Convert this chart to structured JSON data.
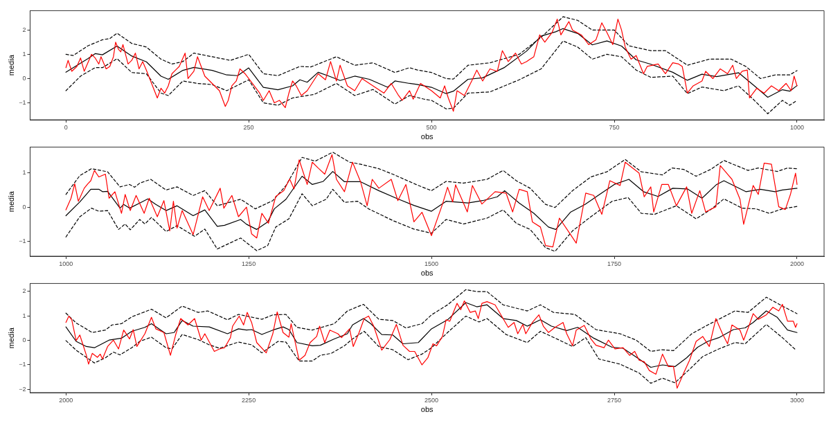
{
  "chart_data": [
    {
      "type": "line",
      "xlabel": "obs",
      "ylabel": "media",
      "marker": "none",
      "xlim": [
        -49,
        1037
      ],
      "xticks": [
        0,
        250,
        500,
        750,
        1000
      ],
      "ylim": [
        -1.7,
        2.8
      ],
      "yticks": [
        -1,
        0,
        1,
        2
      ],
      "series": [
        {
          "color": "#ff0000",
          "x": [
            0,
            3,
            8,
            15,
            20,
            25,
            35,
            40,
            45,
            48,
            55,
            60,
            65,
            68,
            72,
            75,
            78,
            85,
            90,
            95,
            100,
            105,
            110,
            125,
            130,
            135,
            140,
            145,
            155,
            163,
            167,
            175,
            180,
            185,
            190,
            200,
            210,
            218,
            222,
            227,
            233,
            238,
            245,
            255,
            265,
            270,
            278,
            285,
            292,
            300,
            305,
            310,
            315,
            322,
            330,
            345,
            355,
            362,
            370,
            375,
            385,
            395,
            405,
            415,
            425,
            435,
            445,
            455,
            460,
            470,
            475,
            485,
            495,
            500,
            512,
            518,
            523,
            530,
            535,
            545,
            555,
            562,
            570,
            580,
            590,
            597,
            605,
            615,
            623,
            630,
            640,
            648,
            655,
            665,
            672,
            677,
            688,
            693,
            705,
            715,
            725,
            733,
            740,
            748,
            755,
            760,
            765,
            773,
            780,
            790,
            795,
            810,
            820,
            830,
            838,
            843,
            850,
            858,
            870,
            875,
            885,
            895,
            905,
            912,
            917,
            925,
            932,
            935,
            945,
            955,
            965,
            975,
            985,
            992,
            996,
            1000
          ],
          "values": [
            0.45,
            0.75,
            0.3,
            0.5,
            0.85,
            0.3,
            1.0,
            0.85,
            0.6,
            0.9,
            0.4,
            0.5,
            0.9,
            1.5,
            1.2,
            1.1,
            1.4,
            0.6,
            0.75,
            1.05,
            0.4,
            0.7,
            0.35,
            -0.8,
            -0.4,
            -0.6,
            -0.3,
            0.2,
            0.5,
            1.05,
            0.0,
            0.3,
            0.9,
            0.5,
            0.1,
            -0.2,
            -0.5,
            -1.15,
            -0.9,
            -0.3,
            -0.1,
            0.4,
            0.2,
            -0.2,
            -0.6,
            -0.9,
            -0.5,
            -1.0,
            -0.9,
            -1.2,
            -0.6,
            -0.1,
            -0.3,
            -0.7,
            -0.5,
            0.2,
            -0.05,
            0.7,
            -0.1,
            0.55,
            -0.3,
            -0.5,
            0.0,
            -0.2,
            -0.4,
            -0.6,
            -0.2,
            -0.7,
            -0.9,
            -0.5,
            -0.85,
            -0.2,
            -0.4,
            -0.5,
            -0.8,
            -0.3,
            -0.8,
            -1.35,
            -0.5,
            -0.7,
            -0.1,
            0.35,
            -0.1,
            0.4,
            0.3,
            1.15,
            0.7,
            1.05,
            0.6,
            0.7,
            0.9,
            1.8,
            1.5,
            1.9,
            2.45,
            1.8,
            2.35,
            2.0,
            1.8,
            1.4,
            1.6,
            2.3,
            1.9,
            1.4,
            2.45,
            2.0,
            1.3,
            0.8,
            0.95,
            0.2,
            0.5,
            0.6,
            0.2,
            0.65,
            0.6,
            0.5,
            -0.6,
            -0.3,
            -0.1,
            0.3,
            0.0,
            0.4,
            0.2,
            0.55,
            0.0,
            0.3,
            0.35,
            -0.8,
            -0.4,
            -0.6,
            -0.3,
            -0.5,
            -0.2,
            -0.5,
            0.1,
            -0.3
          ]
        },
        {
          "color": "#000000",
          "x": [
            0,
            30,
            40,
            50,
            70,
            90,
            110,
            130,
            140,
            160,
            175,
            200,
            220,
            235,
            250,
            270,
            290,
            310,
            320,
            330,
            345,
            360,
            375,
            395,
            415,
            440,
            450,
            470,
            480,
            500,
            520,
            530,
            550,
            570,
            600,
            630,
            650,
            670,
            680,
            700,
            720,
            740,
            760,
            780,
            800,
            830,
            850,
            870,
            890,
            920,
            940,
            960,
            980,
            990,
            1000
          ],
          "values": [
            0.26,
            0.82,
            1.03,
            0.98,
            1.34,
            0.93,
            0.69,
            0.1,
            -0.03,
            0.34,
            0.46,
            0.34,
            0.15,
            0.12,
            0.44,
            -0.36,
            -0.46,
            -0.3,
            -0.05,
            -0.15,
            0.26,
            0.1,
            -0.08,
            0.1,
            -0.03,
            -0.36,
            -0.1,
            -0.2,
            -0.24,
            -0.36,
            -0.62,
            -0.52,
            -0.03,
            0.03,
            0.46,
            1.13,
            1.75,
            1.93,
            2.06,
            1.86,
            1.39,
            1.55,
            1.34,
            0.77,
            0.59,
            0.26,
            -0.07,
            0.18,
            0.08,
            0.24,
            -0.26,
            -0.77,
            -0.46,
            -0.52,
            -0.29
          ]
        },
        {
          "color": "#000000",
          "line_style": "dashed",
          "x": [
            0,
            10,
            30,
            50,
            60,
            70,
            90,
            110,
            130,
            145,
            160,
            175,
            200,
            225,
            250,
            270,
            290,
            320,
            335,
            370,
            395,
            420,
            450,
            470,
            480,
            500,
            520,
            530,
            550,
            580,
            620,
            650,
            680,
            700,
            720,
            750,
            770,
            800,
            820,
            850,
            880,
            910,
            930,
            950,
            970,
            990,
            1000
          ],
          "values": [
            1.0,
            0.95,
            1.35,
            1.6,
            1.65,
            1.87,
            1.45,
            1.3,
            0.8,
            0.6,
            0.7,
            1.05,
            0.9,
            0.75,
            1.0,
            0.2,
            0.12,
            0.5,
            0.48,
            0.9,
            0.55,
            0.65,
            0.25,
            0.45,
            0.36,
            0.25,
            0.0,
            -0.02,
            0.55,
            0.65,
            1.0,
            1.7,
            2.55,
            2.4,
            2.0,
            2.0,
            1.35,
            1.15,
            1.15,
            0.55,
            0.8,
            0.8,
            0.5,
            0.0,
            0.15,
            0.15,
            0.33
          ]
        },
        {
          "color": "#000000",
          "line_style": "dashed",
          "x": [
            0,
            20,
            40,
            50,
            70,
            90,
            110,
            130,
            140,
            160,
            180,
            200,
            220,
            250,
            270,
            290,
            310,
            340,
            370,
            395,
            420,
            450,
            470,
            490,
            500,
            520,
            530,
            550,
            580,
            620,
            650,
            680,
            700,
            720,
            740,
            760,
            780,
            800,
            830,
            850,
            870,
            900,
            920,
            940,
            960,
            980,
            990,
            1000
          ],
          "values": [
            -0.5,
            0.1,
            0.45,
            0.45,
            0.82,
            0.25,
            0.2,
            -0.6,
            -0.7,
            -0.1,
            -0.2,
            -0.25,
            -0.5,
            -0.05,
            -1.0,
            -1.1,
            -0.8,
            -0.65,
            -0.2,
            -0.7,
            -0.45,
            -1.05,
            -0.7,
            -0.85,
            -0.9,
            -1.25,
            -1.22,
            -0.6,
            -0.55,
            -0.05,
            0.4,
            1.55,
            1.3,
            0.8,
            1.0,
            0.9,
            0.35,
            0.05,
            0.1,
            -0.62,
            -0.35,
            -0.5,
            -0.3,
            -0.85,
            -1.45,
            -0.9,
            -1.1,
            -0.9
          ]
        }
      ]
    },
    {
      "type": "line",
      "xlabel": "obs",
      "ylabel": "media",
      "marker": "none",
      "xlim": [
        951,
        2037
      ],
      "xticks": [
        1000,
        1250,
        1500,
        1750,
        2000
      ],
      "ylim": [
        -1.43,
        1.75
      ],
      "yticks": [
        -1,
        0,
        1
      ],
      "series": [
        {
          "color": "#ff0000",
          "x": [
            1000,
            1007,
            1012,
            1017,
            1025,
            1030,
            1034,
            1039,
            1045,
            1054,
            1059,
            1067,
            1076,
            1081,
            1088,
            1096,
            1107,
            1114,
            1125,
            1134,
            1142,
            1147,
            1152,
            1159,
            1174,
            1187,
            1196,
            1211,
            1216,
            1227,
            1236,
            1247,
            1254,
            1261,
            1268,
            1277,
            1287,
            1298,
            1306,
            1312,
            1319,
            1330,
            1337,
            1345,
            1354,
            1364,
            1370,
            1381,
            1392,
            1403,
            1412,
            1419,
            1428,
            1445,
            1454,
            1465,
            1476,
            1487,
            1500,
            1515,
            1522,
            1529,
            1533,
            1549,
            1556,
            1569,
            1587,
            1602,
            1611,
            1620,
            1631,
            1638,
            1649,
            1656,
            1666,
            1675,
            1689,
            1698,
            1711,
            1722,
            1733,
            1744,
            1758,
            1765,
            1771,
            1784,
            1791,
            1800,
            1804,
            1815,
            1824,
            1835,
            1849,
            1856,
            1867,
            1875,
            1889,
            1895,
            1911,
            1922,
            1927,
            1940,
            1947,
            1955,
            1965,
            1975,
            1984,
            1991,
            1998,
            2000
          ],
          "values": [
            -0.08,
            0.26,
            0.68,
            0.17,
            0.55,
            0.68,
            0.77,
            1.07,
            0.88,
            0.96,
            0.26,
            0.45,
            -0.18,
            0.37,
            -0.1,
            0.34,
            -0.18,
            0.26,
            -0.28,
            0.19,
            -0.69,
            0.17,
            -0.61,
            -0.1,
            -0.8,
            0.3,
            -0.1,
            0.55,
            -0.03,
            0.34,
            -0.28,
            0.0,
            -0.78,
            -0.9,
            -0.18,
            -0.47,
            0.31,
            0.48,
            0.82,
            0.53,
            1.38,
            0.66,
            1.31,
            1.14,
            0.96,
            1.53,
            0.81,
            0.45,
            1.31,
            0.74,
            0.04,
            0.81,
            0.55,
            0.81,
            0.19,
            0.66,
            -0.43,
            -0.15,
            -0.83,
            0.08,
            0.58,
            0.15,
            0.65,
            -0.14,
            0.63,
            0.09,
            0.45,
            0.41,
            -0.14,
            0.52,
            0.45,
            -0.43,
            -0.58,
            -1.12,
            -1.16,
            -0.32,
            -0.76,
            -1.05,
            0.41,
            0.34,
            -0.21,
            0.77,
            0.63,
            1.31,
            1.21,
            0.99,
            0.3,
            0.59,
            -0.14,
            0.66,
            0.66,
            0.04,
            0.59,
            -0.18,
            0.48,
            -0.14,
            0.01,
            1.21,
            0.81,
            0.23,
            -0.5,
            0.63,
            0.37,
            1.28,
            1.25,
            0.01,
            -0.07,
            0.37,
            0.99,
            0.66
          ]
        },
        {
          "color": "#000000",
          "x": [
            1000,
            1019,
            1034,
            1045,
            1050,
            1057,
            1074,
            1079,
            1087,
            1101,
            1112,
            1123,
            1137,
            1152,
            1174,
            1190,
            1207,
            1217,
            1239,
            1247,
            1261,
            1276,
            1285,
            1301,
            1323,
            1337,
            1352,
            1365,
            1381,
            1403,
            1428,
            1454,
            1476,
            1500,
            1520,
            1550,
            1570,
            1590,
            1600,
            1620,
            1640,
            1660,
            1670,
            1690,
            1710,
            1730,
            1750,
            1770,
            1790,
            1810,
            1830,
            1850,
            1870,
            1890,
            1900,
            1930,
            1950,
            1970,
            1980,
            2000
          ],
          "values": [
            -0.25,
            0.15,
            0.52,
            0.52,
            0.45,
            0.46,
            -0.03,
            0.08,
            -0.03,
            0.12,
            0.24,
            0.08,
            -0.1,
            0.04,
            -0.25,
            -0.08,
            -0.56,
            -0.53,
            -0.36,
            -0.5,
            -0.65,
            -0.43,
            -0.05,
            0.23,
            0.9,
            0.66,
            0.75,
            1.04,
            0.74,
            0.74,
            0.48,
            0.24,
            0.05,
            -0.12,
            0.17,
            0.12,
            0.19,
            0.3,
            0.48,
            0.12,
            -0.18,
            -0.58,
            -0.65,
            -0.15,
            0.08,
            0.37,
            0.66,
            0.81,
            0.45,
            0.31,
            0.55,
            0.53,
            0.26,
            0.66,
            0.77,
            0.45,
            0.52,
            0.45,
            0.5,
            0.55
          ]
        },
        {
          "color": "#000000",
          "line_style": "dashed",
          "x": [
            1000,
            1019,
            1035,
            1057,
            1074,
            1087,
            1094,
            1101,
            1116,
            1137,
            1152,
            1174,
            1190,
            1207,
            1239,
            1259,
            1283,
            1301,
            1323,
            1341,
            1365,
            1388,
            1403,
            1428,
            1447,
            1480,
            1500,
            1520,
            1544,
            1576,
            1598,
            1616,
            1635,
            1656,
            1669,
            1693,
            1718,
            1740,
            1765,
            1787,
            1816,
            1829,
            1845,
            1862,
            1882,
            1900,
            1933,
            1947,
            1973,
            1987,
            2000
          ],
          "values": [
            0.37,
            0.92,
            1.12,
            1.03,
            0.59,
            0.66,
            0.58,
            0.7,
            0.81,
            0.5,
            0.59,
            0.34,
            0.48,
            0.04,
            0.23,
            -0.05,
            0.19,
            0.63,
            1.45,
            1.34,
            1.6,
            1.31,
            1.25,
            1.12,
            0.96,
            0.65,
            0.48,
            0.75,
            0.7,
            0.81,
            1.07,
            0.77,
            0.55,
            0.08,
            -0.01,
            0.48,
            0.88,
            1.03,
            1.39,
            1.03,
            0.94,
            1.14,
            1.1,
            0.9,
            1.1,
            1.36,
            1.07,
            1.14,
            1.04,
            1.14,
            1.12
          ]
        },
        {
          "color": "#000000",
          "line_style": "dashed",
          "x": [
            1000,
            1019,
            1035,
            1045,
            1057,
            1072,
            1081,
            1088,
            1101,
            1108,
            1117,
            1137,
            1152,
            1176,
            1190,
            1207,
            1217,
            1239,
            1261,
            1276,
            1287,
            1305,
            1323,
            1337,
            1356,
            1365,
            1381,
            1399,
            1414,
            1447,
            1476,
            1500,
            1520,
            1544,
            1576,
            1598,
            1616,
            1635,
            1656,
            1669,
            1693,
            1718,
            1747,
            1769,
            1787,
            1805,
            1835,
            1862,
            1882,
            1900,
            1925,
            1944,
            1962,
            1980,
            2000
          ],
          "values": [
            -0.87,
            -0.28,
            -0.03,
            -0.12,
            -0.1,
            -0.65,
            -0.49,
            -0.66,
            -0.36,
            -0.49,
            -0.3,
            -0.71,
            -0.54,
            -0.85,
            -0.64,
            -1.22,
            -1.12,
            -0.9,
            -1.27,
            -1.12,
            -0.58,
            -0.34,
            0.39,
            0.04,
            0.23,
            0.52,
            0.14,
            0.17,
            -0.05,
            -0.39,
            -0.64,
            -0.76,
            -0.36,
            -0.49,
            -0.32,
            -0.08,
            -0.47,
            -0.65,
            -1.18,
            -1.29,
            -0.69,
            -0.28,
            0.17,
            0.28,
            -0.18,
            -0.21,
            0.04,
            -0.34,
            -0.07,
            0.24,
            -0.03,
            -0.05,
            -0.18,
            -0.05,
            0.02
          ]
        }
      ]
    },
    {
      "type": "line",
      "xlabel": "obs",
      "ylabel": "media",
      "marker": "none",
      "xlim": [
        1951,
        3037
      ],
      "xticks": [
        2000,
        2250,
        2500,
        2750,
        3000
      ],
      "ylim": [
        -2.13,
        2.32
      ],
      "yticks": [
        -2,
        -1,
        0,
        1,
        2
      ],
      "series": [
        {
          "color": "#ff0000",
          "x": [
            2000,
            2004,
            2008,
            2014,
            2019,
            2028,
            2031,
            2036,
            2043,
            2047,
            2050,
            2057,
            2065,
            2072,
            2079,
            2087,
            2092,
            2097,
            2108,
            2117,
            2123,
            2134,
            2143,
            2150,
            2157,
            2167,
            2176,
            2185,
            2190,
            2203,
            2210,
            2217,
            2225,
            2228,
            2237,
            2243,
            2248,
            2254,
            2261,
            2274,
            2283,
            2289,
            2297,
            2305,
            2308,
            2319,
            2327,
            2334,
            2343,
            2347,
            2354,
            2361,
            2372,
            2377,
            2388,
            2393,
            2401,
            2408,
            2414,
            2421,
            2432,
            2443,
            2452,
            2461,
            2470,
            2477,
            2487,
            2495,
            2502,
            2507,
            2515,
            2520,
            2525,
            2535,
            2540,
            2545,
            2553,
            2560,
            2564,
            2569,
            2576,
            2587,
            2596,
            2605,
            2613,
            2618,
            2625,
            2629,
            2638,
            2647,
            2653,
            2660,
            2669,
            2680,
            2685,
            2693,
            2698,
            2709,
            2718,
            2725,
            2736,
            2742,
            2751,
            2762,
            2771,
            2778,
            2784,
            2791,
            2798,
            2807,
            2816,
            2824,
            2831,
            2836,
            2845,
            2853,
            2862,
            2871,
            2880,
            2889,
            2898,
            2905,
            2911,
            2922,
            2927,
            2935,
            2940,
            2947,
            2958,
            2967,
            2975,
            2980,
            2987,
            2995,
            2998,
            3000
          ],
          "values": [
            0.73,
            0.99,
            0.84,
            -0.01,
            0.22,
            -0.61,
            -0.97,
            -0.53,
            -0.69,
            -0.56,
            -0.76,
            -0.25,
            0.01,
            -0.35,
            0.42,
            0.06,
            0.44,
            -0.25,
            0.27,
            0.94,
            0.47,
            0.32,
            -0.61,
            0.22,
            0.89,
            0.63,
            0.89,
            0.01,
            0.27,
            -0.45,
            -0.35,
            -0.3,
            0.11,
            0.58,
            0.99,
            0.63,
            1.14,
            0.73,
            -0.09,
            -0.51,
            0.27,
            1.16,
            0.32,
            0.13,
            0.68,
            -0.81,
            -0.61,
            -0.09,
            0.16,
            0.58,
            -0.09,
            0.42,
            0.27,
            0.11,
            0.47,
            -0.25,
            0.32,
            0.89,
            0.99,
            0.58,
            -0.4,
            0.03,
            0.65,
            -0.2,
            -0.45,
            -0.45,
            -1.0,
            -0.71,
            -0.14,
            -0.22,
            0.16,
            0.84,
            0.78,
            1.51,
            1.25,
            1.61,
            1.14,
            1.2,
            0.89,
            1.51,
            1.58,
            1.45,
            0.99,
            0.53,
            0.73,
            0.27,
            0.65,
            0.27,
            0.73,
            1.04,
            0.58,
            0.32,
            0.53,
            0.73,
            0.27,
            -0.22,
            0.42,
            0.61,
            0.06,
            -0.2,
            -0.3,
            0.01,
            -0.35,
            -0.3,
            -0.61,
            -0.45,
            -0.81,
            -0.87,
            -1.23,
            -1.38,
            -0.56,
            -1.07,
            -1.07,
            -1.95,
            -1.33,
            -0.81,
            -0.04,
            0.16,
            -0.25,
            0.89,
            0.27,
            -0.14,
            0.63,
            0.42,
            0.01,
            0.65,
            1.09,
            0.86,
            1.04,
            1.35,
            1.2,
            1.47,
            0.78,
            0.78,
            0.53,
            0.68
          ]
        },
        {
          "color": "#000000",
          "x": [
            2000,
            2014,
            2028,
            2039,
            2059,
            2076,
            2090,
            2108,
            2117,
            2137,
            2148,
            2159,
            2174,
            2196,
            2221,
            2236,
            2247,
            2254,
            2268,
            2283,
            2297,
            2305,
            2316,
            2337,
            2348,
            2367,
            2385,
            2392,
            2407,
            2417,
            2432,
            2447,
            2461,
            2482,
            2500,
            2522,
            2547,
            2562,
            2576,
            2598,
            2616,
            2631,
            2649,
            2664,
            2685,
            2700,
            2722,
            2747,
            2762,
            2784,
            2800,
            2816,
            2833,
            2849,
            2864,
            2878,
            2893,
            2913,
            2929,
            2940,
            2958,
            2973,
            2987,
            3000
          ],
          "values": [
            0.55,
            -0.04,
            -0.25,
            -0.3,
            0.01,
            0.09,
            0.37,
            0.53,
            0.68,
            0.27,
            0.32,
            0.81,
            0.58,
            0.55,
            0.27,
            0.47,
            0.42,
            0.44,
            0.24,
            0.42,
            0.55,
            0.44,
            -0.09,
            -0.22,
            -0.2,
            0.06,
            0.27,
            0.63,
            0.89,
            0.68,
            0.24,
            0.22,
            -0.14,
            -0.09,
            0.47,
            0.84,
            1.54,
            1.37,
            1.45,
            0.89,
            0.81,
            0.58,
            0.84,
            0.58,
            0.4,
            0.53,
            0.09,
            -0.28,
            -0.32,
            -0.76,
            -1.1,
            -1.0,
            -1.07,
            -0.71,
            -0.28,
            -0.04,
            0.11,
            0.44,
            0.51,
            0.73,
            1.2,
            0.94,
            0.42,
            0.32
          ]
        },
        {
          "color": "#000000",
          "line_style": "dashed",
          "x": [
            2000,
            2014,
            2036,
            2054,
            2063,
            2076,
            2090,
            2117,
            2137,
            2159,
            2181,
            2194,
            2221,
            2236,
            2268,
            2283,
            2301,
            2316,
            2337,
            2367,
            2385,
            2407,
            2428,
            2447,
            2465,
            2487,
            2500,
            2522,
            2547,
            2562,
            2576,
            2598,
            2631,
            2649,
            2667,
            2696,
            2725,
            2758,
            2780,
            2800,
            2815,
            2831,
            2856,
            2878,
            2915,
            2933,
            2958,
            2980,
            3000
          ],
          "values": [
            1.11,
            0.71,
            0.32,
            0.42,
            0.63,
            0.68,
            0.96,
            1.27,
            0.92,
            1.4,
            1.14,
            1.2,
            0.84,
            1.06,
            0.86,
            1.04,
            1.06,
            0.53,
            0.42,
            0.68,
            1.2,
            1.47,
            0.86,
            0.81,
            0.51,
            0.68,
            1.04,
            1.45,
            2.07,
            1.99,
            1.99,
            1.45,
            1.2,
            1.45,
            1.14,
            1.06,
            0.44,
            0.27,
            0.01,
            -0.45,
            -0.38,
            -0.42,
            0.27,
            0.63,
            1.2,
            1.14,
            1.76,
            1.4,
            1.09
          ]
        },
        {
          "color": "#000000",
          "line_style": "dashed",
          "x": [
            2000,
            2014,
            2039,
            2054,
            2065,
            2074,
            2090,
            2101,
            2117,
            2137,
            2145,
            2159,
            2181,
            2196,
            2210,
            2236,
            2254,
            2268,
            2290,
            2301,
            2319,
            2337,
            2348,
            2363,
            2381,
            2392,
            2408,
            2428,
            2447,
            2468,
            2487,
            2500,
            2522,
            2547,
            2565,
            2576,
            2602,
            2631,
            2649,
            2675,
            2693,
            2711,
            2729,
            2758,
            2784,
            2800,
            2816,
            2833,
            2853,
            2871,
            2893,
            2915,
            2929,
            2958,
            2980,
            2998
          ],
          "values": [
            -0.01,
            -0.4,
            -0.92,
            -0.71,
            -0.48,
            -0.59,
            -0.3,
            -0.04,
            0.13,
            -0.3,
            -0.35,
            0.24,
            0.03,
            -0.18,
            -0.32,
            -0.07,
            -0.18,
            -0.51,
            -0.04,
            -0.07,
            -0.84,
            -0.84,
            -0.61,
            -0.53,
            -0.22,
            0.06,
            0.37,
            -0.25,
            -0.38,
            -0.79,
            -0.56,
            -0.3,
            0.32,
            0.99,
            0.75,
            0.89,
            0.24,
            -0.09,
            0.37,
            0.01,
            -0.25,
            0.11,
            -0.76,
            -0.97,
            -1.33,
            -1.75,
            -1.54,
            -1.73,
            -1.18,
            -0.66,
            -0.35,
            -0.09,
            -0.14,
            0.65,
            0.11,
            -0.38
          ]
        }
      ]
    }
  ]
}
